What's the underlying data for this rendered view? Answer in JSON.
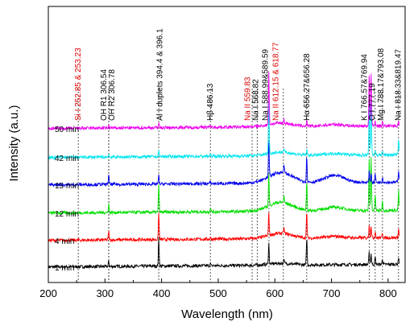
{
  "chart_data": {
    "type": "line",
    "xlabel": "Wavelength (nm)",
    "ylabel": "Intensity (a.u.)",
    "xlim": [
      200,
      830
    ],
    "x_ticks": [
      "200",
      "300",
      "400",
      "500",
      "600",
      "700",
      "800"
    ],
    "grid": false,
    "series": [
      {
        "name": "1 min",
        "color": "#000000",
        "level": 0
      },
      {
        "name": "4 min",
        "color": "#ff0000",
        "level": 1
      },
      {
        "name": "12 min",
        "color": "#00dd00",
        "level": 2
      },
      {
        "name": "15 min",
        "color": "#0000ee",
        "level": 3
      },
      {
        "name": "42 min",
        "color": "#00e5ee",
        "level": 4
      },
      {
        "name": "50 min",
        "color": "#ee00ee",
        "level": 5
      }
    ],
    "emission_lines": [
      {
        "wavelength": 252.85,
        "label": "Si I 252.85 & 253.23",
        "color": "#dd0000"
      },
      {
        "wavelength": 306.54,
        "label": "OH R1 306.54",
        "color": "#000000"
      },
      {
        "wavelength": 306.78,
        "label": "OH R2 306.78",
        "color": "#000000"
      },
      {
        "wavelength": 395.0,
        "label": "Al I duplets 394.4 & 396.1",
        "color": "#000000"
      },
      {
        "wavelength": 486.13,
        "label": "Hβ 486.13",
        "color": "#000000"
      },
      {
        "wavelength": 559.83,
        "label": "Na II 559.83",
        "color": "#dd0000"
      },
      {
        "wavelength": 568.82,
        "label": "Na I 568.82",
        "color": "#000000"
      },
      {
        "wavelength": 589.59,
        "label": "Na I 588.99&589.59",
        "color": "#000000"
      },
      {
        "wavelength": 615.0,
        "label": "Na II 612.15 & 618.77",
        "color": "#dd0000"
      },
      {
        "wavelength": 656.27,
        "label": "Hα 656.27&656.28",
        "color": "#000000"
      },
      {
        "wavelength": 766.57,
        "label": "K I 766.57&769.94",
        "color": "#000000"
      },
      {
        "wavelength": 777.19,
        "label": "O I 777.19",
        "color": "#000000"
      },
      {
        "wavelength": 790.0,
        "label": "Mg I 788.17&793.08",
        "color": "#000000"
      },
      {
        "wavelength": 818.33,
        "label": "Na I 818.33&819.47",
        "color": "#000000"
      }
    ],
    "peaks": [
      {
        "wavelength": 306.6,
        "height": [
          0.3,
          0.5,
          0.5,
          0.6,
          0.2,
          0.15
        ]
      },
      {
        "wavelength": 395.0,
        "height": [
          1.6,
          1.5,
          1.6,
          0.5,
          0.3,
          0.3
        ]
      },
      {
        "wavelength": 486.1,
        "height": [
          0.1,
          0.1,
          0.2,
          0.1,
          0.1,
          0.1
        ]
      },
      {
        "wavelength": 589.3,
        "height": [
          1.2,
          1.3,
          1.8,
          2.0,
          3.0,
          3.0
        ]
      },
      {
        "wavelength": 616.0,
        "height": [
          0.2,
          0.3,
          0.4,
          0.5,
          0.2,
          0.2
        ]
      },
      {
        "wavelength": 656.3,
        "height": [
          1.5,
          1.4,
          1.6,
          1.4,
          0.3,
          0.3
        ]
      },
      {
        "wavelength": 766.6,
        "height": [
          0.7,
          0.8,
          3.0,
          0.6,
          3.0,
          3.0
        ]
      },
      {
        "wavelength": 770.0,
        "height": [
          0.6,
          0.7,
          3.0,
          0.5,
          3.0,
          3.0
        ]
      },
      {
        "wavelength": 777.2,
        "height": [
          0.4,
          0.4,
          0.9,
          0.5,
          0.3,
          0.3
        ]
      },
      {
        "wavelength": 790.0,
        "height": [
          0.3,
          0.3,
          0.5,
          0.3,
          0.2,
          0.2
        ]
      },
      {
        "wavelength": 818.5,
        "height": [
          0.4,
          0.5,
          1.1,
          0.7,
          0.9,
          0.3
        ]
      }
    ],
    "humps": [
      {
        "center": 610,
        "width": 30,
        "height": [
          0.1,
          0.3,
          0.5,
          0.6,
          0.2,
          0.2
        ]
      },
      {
        "center": 705,
        "width": 25,
        "height": [
          0.0,
          0.1,
          0.2,
          0.4,
          0.1,
          0.1
        ]
      }
    ]
  }
}
